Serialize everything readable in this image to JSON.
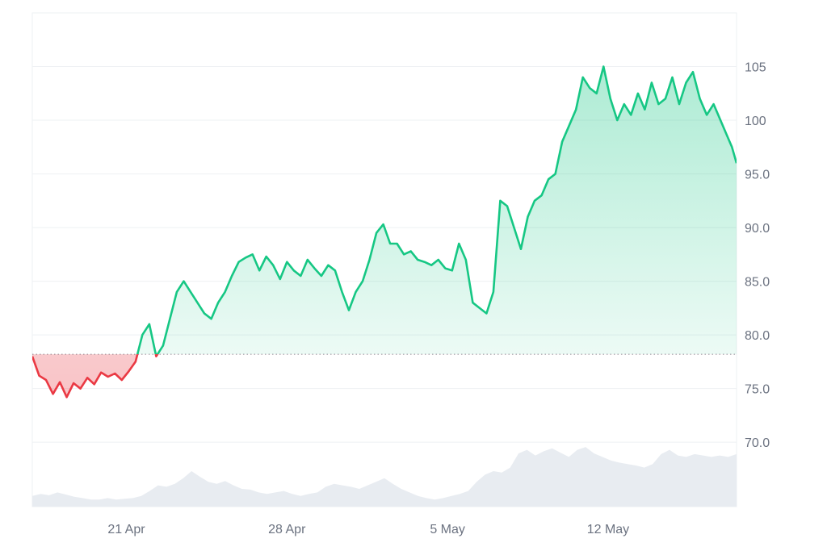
{
  "chart_data": {
    "type": "area",
    "baseline": 78.2,
    "ylim": [
      64,
      110
    ],
    "y_ticks": [
      "105",
      "100",
      "95.0",
      "90.0",
      "85.0",
      "80.0",
      "75.0",
      "70.0"
    ],
    "y_tick_values": [
      105,
      100,
      95,
      90,
      85,
      80,
      75,
      70
    ],
    "x_ticks": [
      "21 Apr",
      "28 Apr",
      "5 May",
      "12 May"
    ],
    "x_tick_days": [
      21,
      28,
      35,
      42
    ],
    "x_range_days": [
      16.9,
      47.6
    ],
    "colors": {
      "above": "#16c784",
      "below": "#ea3943",
      "volume": "#e8ecf1",
      "grid": "#eef0f3",
      "baseline": "#8a8f98"
    },
    "series": [
      {
        "x": [
          16.9,
          17.2,
          17.5,
          17.8,
          18.1,
          18.4,
          18.7,
          19.0,
          19.3,
          19.6,
          19.9,
          20.2,
          20.5,
          20.8,
          21.1,
          21.4,
          21.7,
          22.0,
          22.3,
          22.6,
          22.9,
          23.2,
          23.5,
          23.8,
          24.1,
          24.4,
          24.7,
          25.0,
          25.3,
          25.6,
          25.9,
          26.2,
          26.5,
          26.8,
          27.1,
          27.4,
          27.7,
          28.0,
          28.3,
          28.6,
          28.9,
          29.2,
          29.5,
          29.8,
          30.1,
          30.4,
          30.7,
          31.0,
          31.3,
          31.6,
          31.9,
          32.2,
          32.5,
          32.8,
          33.1,
          33.4,
          33.7,
          34.0,
          34.3,
          34.6,
          34.9,
          35.2,
          35.5,
          35.8,
          36.1,
          36.4,
          36.7,
          37.0,
          37.3,
          37.6,
          37.9,
          38.2,
          38.5,
          38.8,
          39.1,
          39.4,
          39.7,
          40.0,
          40.3,
          40.6,
          40.9,
          41.2,
          41.5,
          41.8,
          42.1,
          42.4,
          42.7,
          43.0,
          43.3,
          43.6,
          43.9,
          44.2,
          44.5,
          44.8,
          45.1,
          45.4,
          45.7,
          46.0,
          46.3,
          46.6,
          46.9,
          47.2,
          47.4,
          47.6
        ],
        "values": [
          78.0,
          76.2,
          75.8,
          74.5,
          75.6,
          74.2,
          75.5,
          75.0,
          76.0,
          75.4,
          76.5,
          76.1,
          76.4,
          75.8,
          76.6,
          77.5,
          80.0,
          81.0,
          78.0,
          79.0,
          81.5,
          84.0,
          85.0,
          84.0,
          83.0,
          82.0,
          81.5,
          83.0,
          84.0,
          85.5,
          86.8,
          87.2,
          87.5,
          86.0,
          87.3,
          86.5,
          85.2,
          86.8,
          86.0,
          85.5,
          87.0,
          86.2,
          85.5,
          86.5,
          86.0,
          84.0,
          82.3,
          84.0,
          85.0,
          87.0,
          89.5,
          90.3,
          88.5,
          88.5,
          87.5,
          87.8,
          87.0,
          86.8,
          86.5,
          87.0,
          86.2,
          86.0,
          88.5,
          87.0,
          83.0,
          82.5,
          82.0,
          84.0,
          92.5,
          92.0,
          90.0,
          88.0,
          91.0,
          92.5,
          93.0,
          94.5,
          95.0,
          98.0,
          99.5,
          101.0,
          104.0,
          103.0,
          102.5,
          105.0,
          102.0,
          100.0,
          101.5,
          100.5,
          102.5,
          101.0,
          103.5,
          101.5,
          102.0,
          104.0,
          101.5,
          103.5,
          104.5,
          102.0,
          100.5,
          101.5,
          100.0,
          98.5,
          97.5,
          96.0
        ]
      }
    ],
    "volume_values": [
      0.15,
      0.18,
      0.16,
      0.2,
      0.17,
      0.14,
      0.12,
      0.1,
      0.1,
      0.12,
      0.1,
      0.11,
      0.12,
      0.15,
      0.22,
      0.3,
      0.28,
      0.32,
      0.4,
      0.5,
      0.42,
      0.35,
      0.32,
      0.36,
      0.3,
      0.25,
      0.24,
      0.2,
      0.18,
      0.2,
      0.22,
      0.18,
      0.15,
      0.18,
      0.2,
      0.28,
      0.32,
      0.3,
      0.28,
      0.25,
      0.3,
      0.35,
      0.4,
      0.32,
      0.25,
      0.2,
      0.15,
      0.12,
      0.1,
      0.12,
      0.15,
      0.18,
      0.22,
      0.35,
      0.45,
      0.5,
      0.48,
      0.55,
      0.75,
      0.8,
      0.72,
      0.78,
      0.82,
      0.76,
      0.7,
      0.8,
      0.84,
      0.75,
      0.7,
      0.65,
      0.62,
      0.6,
      0.58,
      0.55,
      0.6,
      0.74,
      0.8,
      0.72,
      0.7,
      0.74,
      0.72,
      0.7,
      0.72,
      0.7,
      0.74
    ]
  }
}
